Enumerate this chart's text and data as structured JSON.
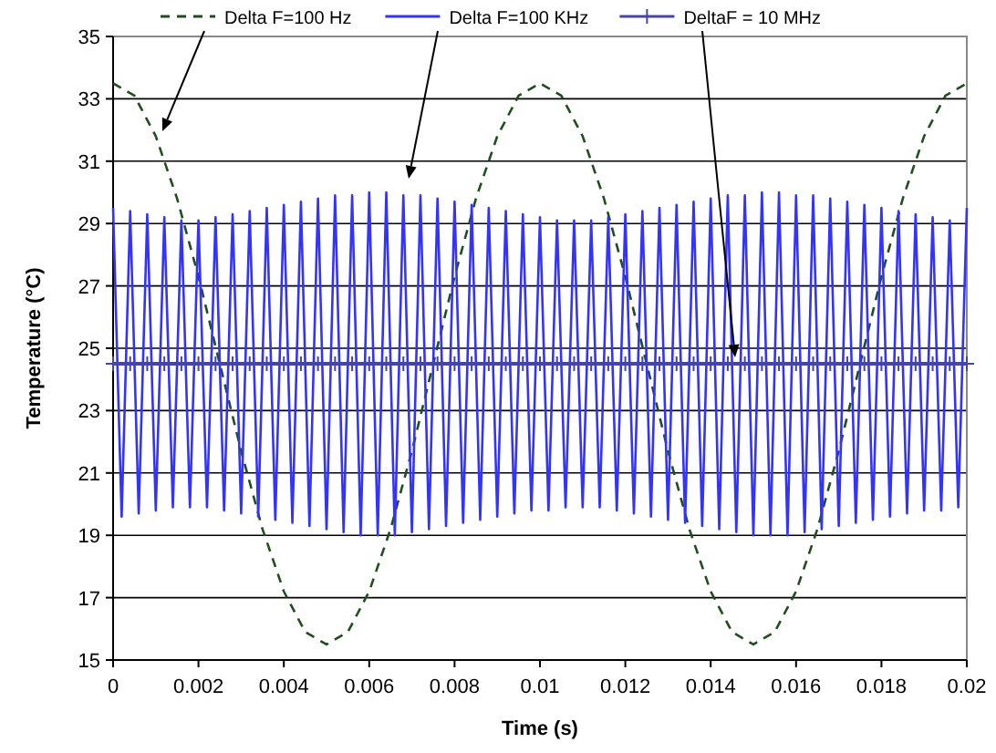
{
  "chart_data": {
    "type": "line",
    "xlabel": "Time (s)",
    "ylabel": "Temperature (°C)",
    "xlim": [
      0,
      0.02
    ],
    "xticks": [
      0,
      0.002,
      0.004,
      0.006,
      0.008,
      0.01,
      0.012,
      0.014,
      0.016,
      0.018,
      0.02
    ],
    "ylim": [
      15,
      35
    ],
    "yticks": [
      15,
      17,
      19,
      21,
      23,
      25,
      27,
      29,
      31,
      33,
      35
    ],
    "grid": "y",
    "legend": "top",
    "series": [
      {
        "name": "Delta F=100 Hz",
        "color": "#1f4f1f",
        "line_style": "dashed",
        "marker": "none",
        "x": [
          0,
          0.0005,
          0.001,
          0.0015,
          0.002,
          0.0025,
          0.003,
          0.0035,
          0.004,
          0.0045,
          0.005,
          0.0055,
          0.006,
          0.0065,
          0.007,
          0.0075,
          0.008,
          0.0085,
          0.009,
          0.0095,
          0.01,
          0.0105,
          0.011,
          0.0115,
          0.012,
          0.0125,
          0.013,
          0.0135,
          0.014,
          0.0145,
          0.015,
          0.0155,
          0.016,
          0.0165,
          0.017,
          0.0175,
          0.018,
          0.0185,
          0.019,
          0.0195,
          0.02
        ],
        "values": [
          33.5,
          33.1,
          31.8,
          29.8,
          27.3,
          24.5,
          21.7,
          19.2,
          17.2,
          15.9,
          15.5,
          15.9,
          17.2,
          19.2,
          21.7,
          24.5,
          27.3,
          29.8,
          31.8,
          33.1,
          33.5,
          33.1,
          31.8,
          29.8,
          27.3,
          24.5,
          21.7,
          19.2,
          17.2,
          15.9,
          15.5,
          15.9,
          17.2,
          19.2,
          21.7,
          24.5,
          27.3,
          29.8,
          31.8,
          33.1,
          33.5
        ]
      },
      {
        "name": "Delta F=100 KHz",
        "color": "#3333ff",
        "line_style": "solid",
        "marker": "none",
        "x": [
          0,
          0.0002,
          0.0004,
          0.0006,
          0.0008,
          0.001,
          0.0012,
          0.0014,
          0.0016,
          0.0018,
          0.002,
          0.0022,
          0.0024,
          0.0026,
          0.0028,
          0.003,
          0.0032,
          0.0034,
          0.0036,
          0.0038,
          0.004,
          0.0042,
          0.0044,
          0.0046,
          0.0048,
          0.005,
          0.0052,
          0.0054,
          0.0056,
          0.0058,
          0.006,
          0.0062,
          0.0064,
          0.0066,
          0.0068,
          0.007,
          0.0072,
          0.0074,
          0.0076,
          0.0078,
          0.008,
          0.0082,
          0.0084,
          0.0086,
          0.0088,
          0.009,
          0.0092,
          0.0094,
          0.0096,
          0.0098,
          0.01,
          0.0102,
          0.0104,
          0.0106,
          0.0108,
          0.011,
          0.0112,
          0.0114,
          0.0116,
          0.0118,
          0.012,
          0.0122,
          0.0124,
          0.0126,
          0.0128,
          0.013,
          0.0132,
          0.0134,
          0.0136,
          0.0138,
          0.014,
          0.0142,
          0.0144,
          0.0146,
          0.0148,
          0.015,
          0.0152,
          0.0154,
          0.0156,
          0.0158,
          0.016,
          0.0162,
          0.0164,
          0.0166,
          0.0168,
          0.017,
          0.0172,
          0.0174,
          0.0176,
          0.0178,
          0.018,
          0.0182,
          0.0184,
          0.0186,
          0.0188,
          0.019,
          0.0192,
          0.0194,
          0.0196,
          0.0198,
          0.02
        ],
        "values": [
          29.5,
          19.6,
          29.4,
          19.7,
          29.3,
          19.8,
          29.2,
          19.9,
          29.1,
          19.9,
          29.1,
          19.9,
          29.2,
          19.8,
          29.3,
          19.7,
          29.4,
          19.6,
          29.5,
          19.5,
          29.6,
          19.4,
          29.7,
          19.3,
          29.8,
          19.2,
          29.9,
          19.1,
          29.9,
          19.0,
          30.0,
          19.0,
          30.0,
          19.0,
          29.9,
          19.1,
          29.9,
          19.2,
          29.8,
          19.3,
          29.7,
          19.4,
          29.6,
          19.5,
          29.5,
          19.6,
          29.4,
          19.7,
          29.3,
          19.8,
          29.2,
          19.8,
          29.1,
          19.9,
          29.1,
          19.9,
          29.1,
          19.9,
          29.2,
          19.8,
          29.3,
          19.7,
          29.4,
          19.6,
          29.5,
          19.5,
          29.6,
          19.4,
          29.7,
          19.3,
          29.8,
          19.2,
          29.9,
          19.1,
          29.9,
          19.0,
          30.0,
          19.0,
          30.0,
          19.0,
          29.9,
          19.1,
          29.9,
          19.2,
          29.8,
          19.3,
          29.7,
          19.4,
          29.6,
          19.5,
          29.5,
          19.6,
          29.4,
          19.7,
          29.3,
          19.8,
          29.2,
          19.8,
          29.1,
          19.9,
          29.5
        ]
      },
      {
        "name": "DeltaF = 10 MHz",
        "color": "#4444aa",
        "line_style": "solid",
        "marker": "cross",
        "x": [
          0,
          0.0004,
          0.0008,
          0.0012,
          0.0016,
          0.002,
          0.0024,
          0.0028,
          0.0032,
          0.0036,
          0.004,
          0.0044,
          0.0048,
          0.0052,
          0.0056,
          0.006,
          0.0064,
          0.0068,
          0.0072,
          0.0076,
          0.008,
          0.0084,
          0.0088,
          0.0092,
          0.0096,
          0.01,
          0.0104,
          0.0108,
          0.0112,
          0.0116,
          0.012,
          0.0124,
          0.0128,
          0.0132,
          0.0136,
          0.014,
          0.0144,
          0.0148,
          0.0152,
          0.0156,
          0.016,
          0.0164,
          0.0168,
          0.0172,
          0.0176,
          0.018,
          0.0184,
          0.0188,
          0.0192,
          0.0196,
          0.02
        ],
        "values": [
          24.5,
          24.5,
          24.5,
          24.5,
          24.5,
          24.5,
          24.5,
          24.5,
          24.5,
          24.5,
          24.5,
          24.5,
          24.5,
          24.5,
          24.5,
          24.5,
          24.5,
          24.5,
          24.5,
          24.5,
          24.5,
          24.5,
          24.5,
          24.5,
          24.5,
          24.5,
          24.5,
          24.5,
          24.5,
          24.5,
          24.5,
          24.5,
          24.5,
          24.5,
          24.5,
          24.5,
          24.5,
          24.5,
          24.5,
          24.5,
          24.5,
          24.5,
          24.5,
          24.5,
          24.5,
          24.5,
          24.5,
          24.5,
          24.5,
          24.5,
          24.5
        ]
      }
    ]
  }
}
